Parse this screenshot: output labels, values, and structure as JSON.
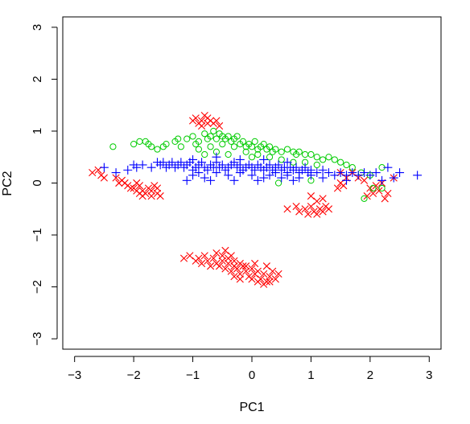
{
  "chart_data": {
    "type": "scatter",
    "title": "",
    "xlabel": "PC1",
    "ylabel": "PC2",
    "xlim": [
      -3.2,
      3.2
    ],
    "ylim": [
      -3.2,
      3.2
    ],
    "x_ticks": [
      -3,
      -2,
      -1,
      0,
      1,
      2,
      3
    ],
    "y_ticks": [
      -3,
      -2,
      -1,
      0,
      1,
      2,
      3
    ],
    "x_tick_labels": [
      "−3",
      "−2",
      "−1",
      "0",
      "1",
      "2",
      "3"
    ],
    "y_tick_labels": [
      "−3",
      "−2",
      "−1",
      "0",
      "1",
      "2",
      "3"
    ],
    "grid": false,
    "legend": "none",
    "series": [
      {
        "marker": "x",
        "color": "#ff0000",
        "points": [
          [
            -2.7,
            0.2
          ],
          [
            -2.6,
            0.25
          ],
          [
            -2.55,
            0.15
          ],
          [
            -2.5,
            0.1
          ],
          [
            -2.3,
            0.1
          ],
          [
            -2.25,
            0.0
          ],
          [
            -2.2,
            0.05
          ],
          [
            -2.1,
            -0.05
          ],
          [
            -2.05,
            -0.1
          ],
          [
            -2.0,
            -0.1
          ],
          [
            -1.95,
            -0.15
          ],
          [
            -1.9,
            -0.2
          ],
          [
            -1.85,
            -0.15
          ],
          [
            -1.8,
            -0.2
          ],
          [
            -1.75,
            -0.1
          ],
          [
            -1.7,
            -0.15
          ],
          [
            -1.65,
            -0.05
          ],
          [
            -1.6,
            -0.2
          ],
          [
            -1.9,
            -0.05
          ],
          [
            -1.85,
            -0.25
          ],
          [
            -1.7,
            -0.25
          ],
          [
            -1.6,
            -0.1
          ],
          [
            -1.55,
            -0.25
          ],
          [
            -1.95,
            0.0
          ],
          [
            -2.15,
            0.0
          ],
          [
            -1.0,
            1.2
          ],
          [
            -0.95,
            1.25
          ],
          [
            -0.9,
            1.15
          ],
          [
            -0.85,
            1.2
          ],
          [
            -0.8,
            1.3
          ],
          [
            -0.75,
            1.25
          ],
          [
            -0.7,
            1.2
          ],
          [
            -0.65,
            1.15
          ],
          [
            -0.6,
            1.2
          ],
          [
            -0.55,
            1.1
          ],
          [
            -0.85,
            1.1
          ],
          [
            -0.75,
            1.15
          ],
          [
            -1.15,
            -1.45
          ],
          [
            -1.05,
            -1.4
          ],
          [
            -0.95,
            -1.5
          ],
          [
            -0.9,
            -1.45
          ],
          [
            -0.85,
            -1.55
          ],
          [
            -0.8,
            -1.4
          ],
          [
            -0.75,
            -1.5
          ],
          [
            -0.7,
            -1.6
          ],
          [
            -0.65,
            -1.45
          ],
          [
            -0.6,
            -1.55
          ],
          [
            -0.55,
            -1.6
          ],
          [
            -0.5,
            -1.5
          ],
          [
            -0.45,
            -1.65
          ],
          [
            -0.4,
            -1.55
          ],
          [
            -0.35,
            -1.7
          ],
          [
            -0.3,
            -1.6
          ],
          [
            -0.25,
            -1.65
          ],
          [
            -0.2,
            -1.75
          ],
          [
            -0.15,
            -1.6
          ],
          [
            -0.1,
            -1.7
          ],
          [
            -0.05,
            -1.8
          ],
          [
            0.0,
            -1.65
          ],
          [
            0.05,
            -1.75
          ],
          [
            0.1,
            -1.7
          ],
          [
            0.15,
            -1.85
          ],
          [
            0.2,
            -1.75
          ],
          [
            0.25,
            -1.9
          ],
          [
            0.3,
            -1.8
          ],
          [
            0.35,
            -1.7
          ],
          [
            0.4,
            -1.85
          ],
          [
            0.45,
            -1.75
          ],
          [
            -0.5,
            -1.4
          ],
          [
            -0.4,
            -1.45
          ],
          [
            -0.3,
            -1.5
          ],
          [
            -0.2,
            -1.55
          ],
          [
            -0.1,
            -1.6
          ],
          [
            0.0,
            -1.85
          ],
          [
            0.1,
            -1.9
          ],
          [
            0.2,
            -1.95
          ],
          [
            0.3,
            -1.9
          ],
          [
            -0.3,
            -1.8
          ],
          [
            -0.2,
            -1.85
          ],
          [
            -0.6,
            -1.35
          ],
          [
            -0.45,
            -1.3
          ],
          [
            -0.35,
            -1.4
          ],
          [
            0.05,
            -1.55
          ],
          [
            0.25,
            -1.6
          ],
          [
            0.6,
            -0.5
          ],
          [
            0.75,
            -0.45
          ],
          [
            0.8,
            -0.55
          ],
          [
            0.9,
            -0.5
          ],
          [
            1.0,
            -0.45
          ],
          [
            1.05,
            -0.55
          ],
          [
            1.1,
            -0.6
          ],
          [
            1.15,
            -0.5
          ],
          [
            1.2,
            -0.55
          ],
          [
            1.25,
            -0.45
          ],
          [
            1.3,
            -0.5
          ],
          [
            1.0,
            -0.25
          ],
          [
            1.1,
            -0.35
          ],
          [
            1.2,
            -0.3
          ],
          [
            0.95,
            -0.6
          ],
          [
            1.5,
            0.2
          ],
          [
            1.6,
            0.1
          ],
          [
            1.7,
            0.2
          ],
          [
            1.8,
            0.1
          ],
          [
            1.9,
            0.05
          ],
          [
            2.0,
            -0.1
          ],
          [
            2.05,
            -0.2
          ],
          [
            2.1,
            -0.05
          ],
          [
            2.2,
            0.0
          ],
          [
            2.25,
            -0.3
          ],
          [
            2.3,
            -0.2
          ],
          [
            2.4,
            0.1
          ],
          [
            1.5,
            0.0
          ],
          [
            1.45,
            -0.1
          ],
          [
            1.55,
            -0.05
          ],
          [
            1.95,
            -0.25
          ],
          [
            2.15,
            -0.15
          ]
        ]
      },
      {
        "marker": "o",
        "color": "#00cc00",
        "points": [
          [
            -2.35,
            0.7
          ],
          [
            -2.0,
            0.75
          ],
          [
            -1.9,
            0.8
          ],
          [
            -1.8,
            0.8
          ],
          [
            -1.75,
            0.75
          ],
          [
            -1.7,
            0.7
          ],
          [
            -1.6,
            0.65
          ],
          [
            -1.5,
            0.7
          ],
          [
            -1.45,
            0.75
          ],
          [
            -1.3,
            0.8
          ],
          [
            -1.25,
            0.85
          ],
          [
            -1.2,
            0.7
          ],
          [
            -1.1,
            0.85
          ],
          [
            -1.0,
            0.9
          ],
          [
            -0.95,
            0.75
          ],
          [
            -0.9,
            0.8
          ],
          [
            -0.8,
            0.95
          ],
          [
            -0.75,
            0.85
          ],
          [
            -0.7,
            0.9
          ],
          [
            -0.65,
            1.0
          ],
          [
            -0.6,
            0.85
          ],
          [
            -0.55,
            0.95
          ],
          [
            -0.5,
            0.9
          ],
          [
            -0.45,
            0.85
          ],
          [
            -0.4,
            0.9
          ],
          [
            -0.35,
            0.8
          ],
          [
            -0.3,
            0.85
          ],
          [
            -0.25,
            0.9
          ],
          [
            -0.2,
            0.75
          ],
          [
            -0.15,
            0.8
          ],
          [
            -0.1,
            0.7
          ],
          [
            -0.05,
            0.75
          ],
          [
            0.0,
            0.7
          ],
          [
            0.05,
            0.8
          ],
          [
            0.1,
            0.65
          ],
          [
            0.15,
            0.7
          ],
          [
            0.2,
            0.75
          ],
          [
            0.25,
            0.65
          ],
          [
            0.3,
            0.7
          ],
          [
            0.35,
            0.6
          ],
          [
            0.4,
            0.65
          ],
          [
            0.5,
            0.6
          ],
          [
            0.6,
            0.65
          ],
          [
            0.7,
            0.6
          ],
          [
            0.75,
            0.55
          ],
          [
            0.8,
            0.6
          ],
          [
            0.9,
            0.55
          ],
          [
            1.0,
            0.55
          ],
          [
            1.1,
            0.5
          ],
          [
            1.2,
            0.45
          ],
          [
            1.3,
            0.5
          ],
          [
            1.4,
            0.45
          ],
          [
            1.5,
            0.4
          ],
          [
            1.6,
            0.35
          ],
          [
            1.7,
            0.3
          ],
          [
            -0.9,
            0.65
          ],
          [
            -0.7,
            0.7
          ],
          [
            -0.5,
            0.75
          ],
          [
            -0.3,
            0.7
          ],
          [
            -0.1,
            0.6
          ],
          [
            0.1,
            0.55
          ],
          [
            0.3,
            0.5
          ],
          [
            0.5,
            0.45
          ],
          [
            0.7,
            0.4
          ],
          [
            0.9,
            0.4
          ],
          [
            1.1,
            0.35
          ],
          [
            0.45,
            0.0
          ],
          [
            1.0,
            0.05
          ],
          [
            1.85,
            0.2
          ],
          [
            2.0,
            0.15
          ],
          [
            2.05,
            -0.1
          ],
          [
            2.2,
            -0.1
          ],
          [
            1.9,
            -0.3
          ],
          [
            2.2,
            0.3
          ],
          [
            -0.8,
            0.55
          ],
          [
            -0.6,
            0.6
          ],
          [
            -0.4,
            0.55
          ],
          [
            0.0,
            0.5
          ]
        ]
      },
      {
        "marker": "+",
        "color": "#0000ff",
        "points": [
          [
            -2.5,
            0.3
          ],
          [
            -2.3,
            0.2
          ],
          [
            -2.1,
            0.25
          ],
          [
            -2.0,
            0.35
          ],
          [
            -1.95,
            0.3
          ],
          [
            -1.85,
            0.35
          ],
          [
            -1.7,
            0.3
          ],
          [
            -1.6,
            0.4
          ],
          [
            -1.55,
            0.35
          ],
          [
            -1.5,
            0.4
          ],
          [
            -1.45,
            0.3
          ],
          [
            -1.4,
            0.35
          ],
          [
            -1.35,
            0.4
          ],
          [
            -1.3,
            0.3
          ],
          [
            -1.25,
            0.35
          ],
          [
            -1.2,
            0.4
          ],
          [
            -1.15,
            0.3
          ],
          [
            -1.1,
            0.35
          ],
          [
            -1.05,
            0.4
          ],
          [
            -1.0,
            0.25
          ],
          [
            -0.95,
            0.3
          ],
          [
            -0.9,
            0.35
          ],
          [
            -0.85,
            0.4
          ],
          [
            -0.8,
            0.3
          ],
          [
            -0.75,
            0.25
          ],
          [
            -0.7,
            0.35
          ],
          [
            -0.65,
            0.3
          ],
          [
            -0.6,
            0.4
          ],
          [
            -0.55,
            0.3
          ],
          [
            -0.5,
            0.35
          ],
          [
            -0.45,
            0.25
          ],
          [
            -0.4,
            0.3
          ],
          [
            -0.35,
            0.35
          ],
          [
            -0.3,
            0.4
          ],
          [
            -0.25,
            0.3
          ],
          [
            -0.2,
            0.35
          ],
          [
            -0.15,
            0.25
          ],
          [
            -0.1,
            0.3
          ],
          [
            -0.05,
            0.35
          ],
          [
            0.0,
            0.3
          ],
          [
            0.05,
            0.25
          ],
          [
            0.1,
            0.35
          ],
          [
            0.15,
            0.3
          ],
          [
            0.2,
            0.25
          ],
          [
            0.25,
            0.3
          ],
          [
            0.3,
            0.35
          ],
          [
            0.35,
            0.25
          ],
          [
            0.4,
            0.3
          ],
          [
            0.45,
            0.35
          ],
          [
            0.5,
            0.25
          ],
          [
            0.55,
            0.3
          ],
          [
            0.6,
            0.2
          ],
          [
            0.65,
            0.3
          ],
          [
            0.7,
            0.25
          ],
          [
            0.75,
            0.3
          ],
          [
            0.8,
            0.2
          ],
          [
            0.85,
            0.25
          ],
          [
            0.9,
            0.3
          ],
          [
            0.95,
            0.2
          ],
          [
            1.0,
            0.25
          ],
          [
            1.1,
            0.2
          ],
          [
            1.2,
            0.25
          ],
          [
            1.3,
            0.2
          ],
          [
            1.4,
            0.15
          ],
          [
            1.5,
            0.2
          ],
          [
            1.6,
            0.15
          ],
          [
            1.7,
            0.2
          ],
          [
            1.8,
            0.15
          ],
          [
            1.9,
            0.2
          ],
          [
            2.0,
            0.15
          ],
          [
            2.1,
            0.2
          ],
          [
            2.3,
            0.3
          ],
          [
            2.5,
            0.2
          ],
          [
            2.8,
            0.15
          ],
          [
            -1.0,
            0.15
          ],
          [
            -0.8,
            0.1
          ],
          [
            -0.6,
            0.2
          ],
          [
            -0.4,
            0.15
          ],
          [
            -0.2,
            0.2
          ],
          [
            0.0,
            0.15
          ],
          [
            0.2,
            0.1
          ],
          [
            0.4,
            0.2
          ],
          [
            0.6,
            0.15
          ],
          [
            0.8,
            0.1
          ],
          [
            1.0,
            0.15
          ],
          [
            -1.0,
            0.45
          ],
          [
            -0.6,
            0.5
          ],
          [
            -0.2,
            0.45
          ],
          [
            0.2,
            0.45
          ],
          [
            0.6,
            0.4
          ],
          [
            -0.7,
            0.05
          ],
          [
            -0.3,
            0.05
          ],
          [
            0.1,
            0.05
          ],
          [
            0.5,
            0.1
          ],
          [
            1.2,
            0.1
          ],
          [
            2.2,
            0.05
          ],
          [
            2.4,
            0.1
          ],
          [
            -1.1,
            0.05
          ],
          [
            -0.9,
            0.2
          ],
          [
            0.3,
            0.15
          ],
          [
            0.7,
            0.05
          ],
          [
            1.6,
            0.05
          ]
        ]
      }
    ]
  }
}
